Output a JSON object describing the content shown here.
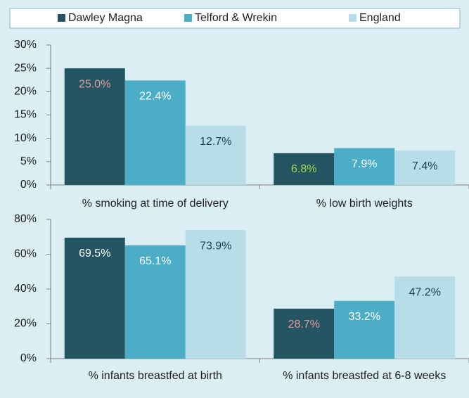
{
  "chart_data": [
    {
      "type": "bar",
      "categories": [
        "% smoking at time of delivery",
        "% low birth weights"
      ],
      "series": [
        {
          "name": "Dawley Magna",
          "color": "#235563",
          "values": [
            25.0,
            6.8
          ],
          "value_labels": [
            "25.0%",
            "6.8%"
          ],
          "value_label_colors": [
            "#e89a9a",
            "#a6d84a"
          ]
        },
        {
          "name": "Telford & Wrekin",
          "color": "#4badc6",
          "values": [
            22.4,
            7.9
          ],
          "value_labels": [
            "22.4%",
            "7.9%"
          ],
          "value_label_colors": [
            "#ffffff",
            "#ffffff"
          ]
        },
        {
          "name": "England",
          "color": "#b7dde8",
          "values": [
            12.7,
            7.4
          ],
          "value_labels": [
            "12.7%",
            "7.4%"
          ],
          "value_label_colors": [
            "#1f3f48",
            "#1f3f48"
          ]
        }
      ],
      "ylim": [
        0,
        30
      ],
      "yticks": [
        {
          "value": 0,
          "label": "0%"
        },
        {
          "value": 5,
          "label": "5%"
        },
        {
          "value": 10,
          "label": "10%"
        },
        {
          "value": 15,
          "label": "15%"
        },
        {
          "value": 20,
          "label": "20%"
        },
        {
          "value": 25,
          "label": "25%"
        },
        {
          "value": 30,
          "label": "30%"
        }
      ],
      "legend": "top"
    },
    {
      "type": "bar",
      "categories": [
        "% infants breastfed at birth",
        "% infants breastfed at 6-8 weeks"
      ],
      "series": [
        {
          "color": "#235563",
          "values": [
            69.5,
            28.7
          ],
          "value_labels": [
            "69.5%",
            "28.7%"
          ],
          "value_label_colors": [
            "#ffffff",
            "#e89a9a"
          ]
        },
        {
          "color": "#4badc6",
          "values": [
            65.1,
            33.2
          ],
          "value_labels": [
            "65.1%",
            "33.2%"
          ],
          "value_label_colors": [
            "#ffffff",
            "#ffffff"
          ]
        },
        {
          "color": "#b7dde8",
          "values": [
            73.9,
            47.2
          ],
          "value_labels": [
            "73.9%",
            "47.2%"
          ],
          "value_label_colors": [
            "#1f3f48",
            "#1f3f48"
          ]
        }
      ],
      "ylim": [
        0,
        80
      ],
      "yticks": [
        {
          "value": 0,
          "label": "0%"
        },
        {
          "value": 20,
          "label": "20%"
        },
        {
          "value": 40,
          "label": "40%"
        },
        {
          "value": 60,
          "label": "60%"
        },
        {
          "value": 80,
          "label": "80%"
        }
      ]
    }
  ]
}
